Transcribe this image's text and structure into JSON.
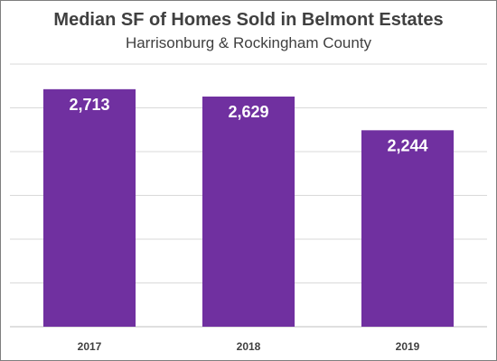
{
  "chart_data": {
    "type": "bar",
    "title": "Median SF of Homes Sold in Belmont Estates",
    "subtitle": "Harrisonburg & Rockingham County",
    "categories": [
      "2017",
      "2018",
      "2019"
    ],
    "values": [
      2713,
      2629,
      2244
    ],
    "value_labels": [
      "2,713",
      "2,629",
      "2,244"
    ],
    "ylim": [
      0,
      3000
    ],
    "y_tick_step": 500,
    "y_tick_labels_shown": false,
    "grid": true,
    "bar_color": "#7030a0",
    "xlabel": "",
    "ylabel": ""
  }
}
